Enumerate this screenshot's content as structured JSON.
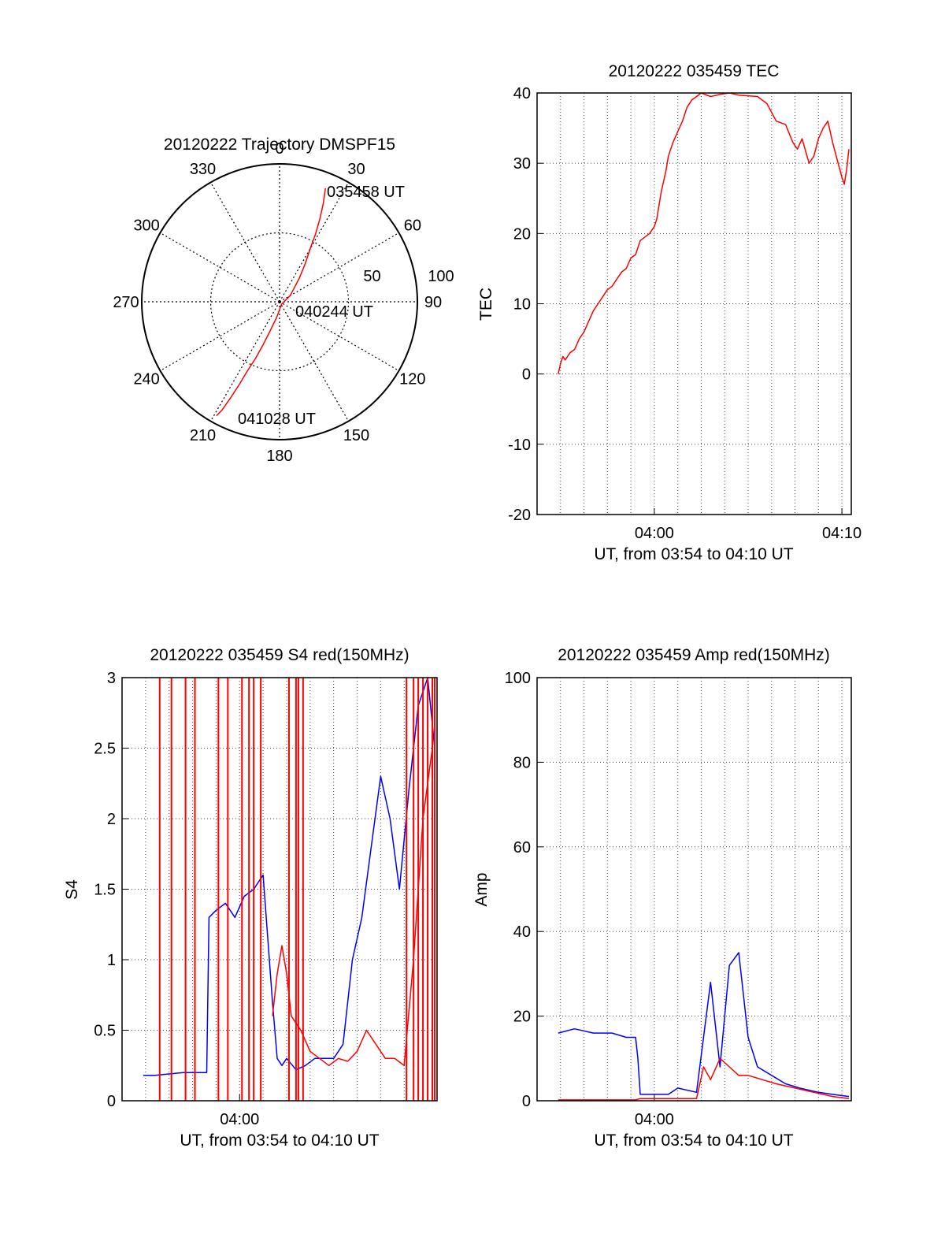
{
  "chart_data": [
    {
      "type": "polar",
      "title": "20120222 Trajectory DMSPF15",
      "azimuth_labels": [
        "0",
        "30",
        "60",
        "90",
        "120",
        "150",
        "180",
        "210",
        "240",
        "270",
        "300",
        "330"
      ],
      "radial_labels": [
        "50",
        "100"
      ],
      "rlim": [
        0,
        100
      ],
      "grid": true,
      "series": [
        {
          "color": "#ff0000",
          "points": [
            {
              "az": 22,
              "el": 10
            },
            {
              "az": 24,
              "el": 20
            },
            {
              "az": 26,
              "el": 30
            },
            {
              "az": 28,
              "el": 40
            },
            {
              "az": 30,
              "el": 50
            },
            {
              "az": 34,
              "el": 60
            },
            {
              "az": 40,
              "el": 70
            },
            {
              "az": 60,
              "el": 82
            },
            {
              "az": 140,
              "el": 88
            },
            {
              "az": 190,
              "el": 80
            },
            {
              "az": 198,
              "el": 70
            },
            {
              "az": 201,
              "el": 60
            },
            {
              "az": 203,
              "el": 50
            },
            {
              "az": 205,
              "el": 40
            },
            {
              "az": 206,
              "el": 30
            },
            {
              "az": 207,
              "el": 20
            },
            {
              "az": 208,
              "el": 10
            },
            {
              "az": 209,
              "el": 5
            }
          ]
        }
      ],
      "annotations": [
        "035458 UT",
        "040244 UT",
        "041028 UT"
      ]
    },
    {
      "type": "line",
      "title": "20120222 035459 TEC",
      "xlabel": "UT, from 03:54 to 04:10 UT",
      "ylabel": "TEC",
      "xlim": [
        3.5,
        10.2
      ],
      "ylim": [
        -20,
        40
      ],
      "xtick_values": [
        6,
        10
      ],
      "xtick_labels": [
        "04:00",
        "04:10"
      ],
      "yticks": [
        "-20",
        "-10",
        "0",
        "10",
        "20",
        "30",
        "40"
      ],
      "grid": true,
      "series": [
        {
          "color": "#ff0000",
          "x": [
            3.95,
            4.0,
            4.05,
            4.1,
            4.2,
            4.3,
            4.4,
            4.5,
            4.6,
            4.7,
            4.8,
            4.9,
            5.0,
            5.1,
            5.2,
            5.3,
            5.4,
            5.5,
            5.6,
            5.7,
            5.8,
            5.9,
            6.0,
            6.05,
            6.1,
            6.15,
            6.2,
            6.25,
            6.3,
            6.35,
            6.4,
            6.5,
            6.6,
            6.7,
            6.8,
            6.9,
            7.0,
            7.2,
            7.4,
            7.6,
            7.8,
            8.0,
            8.2,
            8.4,
            8.6,
            8.8,
            8.95,
            9.05,
            9.15,
            9.3,
            9.4,
            9.5,
            9.6,
            9.7,
            9.8,
            9.9,
            10.0,
            10.05,
            10.1,
            10.15
          ],
          "y": [
            0,
            1.5,
            2.5,
            2,
            3,
            3.5,
            5,
            6,
            7.5,
            9,
            10,
            11,
            12,
            12.5,
            13.5,
            14.5,
            15,
            16.5,
            17,
            19,
            19.5,
            20,
            21,
            22,
            24,
            26,
            27.5,
            29,
            31,
            32,
            33,
            34.5,
            36,
            38,
            39,
            39.5,
            40,
            39.5,
            39.8,
            40,
            39.7,
            39.6,
            39.5,
            38.5,
            36,
            35.5,
            33,
            32,
            33.5,
            30,
            31,
            33.5,
            35,
            36,
            33,
            30.5,
            28,
            27,
            29,
            32
          ]
        }
      ]
    },
    {
      "type": "line",
      "title": "20120222 035459 S4 red(150MHz)",
      "xlabel": "UT, from 03:54 to 04:10 UT",
      "ylabel": "S4",
      "xlim": [
        3.5,
        10.2
      ],
      "ylim": [
        0,
        3
      ],
      "xtick_values": [
        6
      ],
      "xtick_labels": [
        "04:00"
      ],
      "yticks": [
        "0",
        "0.5",
        "1",
        "1.5",
        "2",
        "2.5",
        "3"
      ],
      "grid": true,
      "series": [
        {
          "color": "#0000ff",
          "x": [
            3.95,
            4.2,
            4.5,
            4.8,
            5.1,
            5.3,
            5.35,
            5.5,
            5.7,
            5.9,
            6.1,
            6.3,
            6.5,
            6.7,
            6.8,
            6.9,
            7.0,
            7.2,
            7.4,
            7.6,
            7.8,
            8.0,
            8.2,
            8.4,
            8.6,
            8.8,
            9.0,
            9.2,
            9.4,
            9.6,
            9.8,
            10.0,
            10.15
          ],
          "y": [
            0.18,
            0.18,
            0.19,
            0.2,
            0.2,
            0.2,
            1.3,
            1.35,
            1.4,
            1.3,
            1.45,
            1.5,
            1.6,
            0.7,
            0.3,
            0.25,
            0.3,
            0.22,
            0.25,
            0.3,
            0.3,
            0.3,
            0.4,
            1.0,
            1.3,
            1.8,
            2.3,
            2.0,
            1.5,
            2.2,
            2.8,
            3.0,
            2.5
          ]
        },
        {
          "color": "#ff0000",
          "x": [
            6.7,
            6.8,
            6.9,
            7.0,
            7.1,
            7.3,
            7.5,
            7.7,
            7.9,
            8.1,
            8.3,
            8.5,
            8.7,
            8.9,
            9.1,
            9.3,
            9.5,
            9.7,
            9.9,
            10.1
          ],
          "y": [
            0.6,
            0.9,
            1.1,
            0.9,
            0.6,
            0.5,
            0.35,
            0.3,
            0.25,
            0.3,
            0.28,
            0.35,
            0.5,
            0.4,
            0.3,
            0.3,
            0.25,
            1.0,
            2.0,
            2.5
          ],
          "spikes_x": [
            4.3,
            4.55,
            4.85,
            5.05,
            5.55,
            5.75,
            6.05,
            6.2,
            6.3,
            6.45,
            7.05,
            7.2,
            7.25,
            7.35,
            9.55,
            9.7,
            9.8,
            9.9,
            10.0,
            10.1,
            10.15
          ]
        }
      ]
    },
    {
      "type": "line",
      "title": "20120222 035459 Amp red(150MHz)",
      "xlabel": "UT, from 03:54 to 04:10 UT",
      "ylabel": "Amp",
      "xlim": [
        3.5,
        10.2
      ],
      "ylim": [
        0,
        100
      ],
      "xtick_values": [
        6
      ],
      "xtick_labels": [
        "04:00"
      ],
      "yticks": [
        "0",
        "20",
        "40",
        "60",
        "80",
        "100"
      ],
      "grid": true,
      "series": [
        {
          "color": "#0000ff",
          "x": [
            3.95,
            4.3,
            4.7,
            5.1,
            5.4,
            5.6,
            5.65,
            5.7,
            6.0,
            6.3,
            6.5,
            6.9,
            7.2,
            7.4,
            7.6,
            7.8,
            8.0,
            8.2,
            8.5,
            8.8,
            9.1,
            9.5,
            9.8,
            10.15
          ],
          "y": [
            16,
            17,
            16,
            16,
            15,
            15,
            10,
            1.5,
            1.5,
            1.5,
            3,
            2,
            28,
            8,
            32,
            35,
            15,
            8,
            6,
            4,
            3,
            2,
            1.5,
            1
          ]
        },
        {
          "color": "#ff0000",
          "x": [
            3.95,
            5.6,
            5.7,
            6.9,
            7.05,
            7.2,
            7.4,
            7.6,
            7.8,
            8.0,
            8.3,
            8.6,
            9.0,
            9.4,
            9.8,
            10.15
          ],
          "y": [
            0.2,
            0.2,
            0.5,
            0.5,
            8,
            5,
            10,
            8,
            6,
            6,
            5,
            4,
            3,
            2,
            1,
            0.5
          ]
        }
      ]
    }
  ]
}
